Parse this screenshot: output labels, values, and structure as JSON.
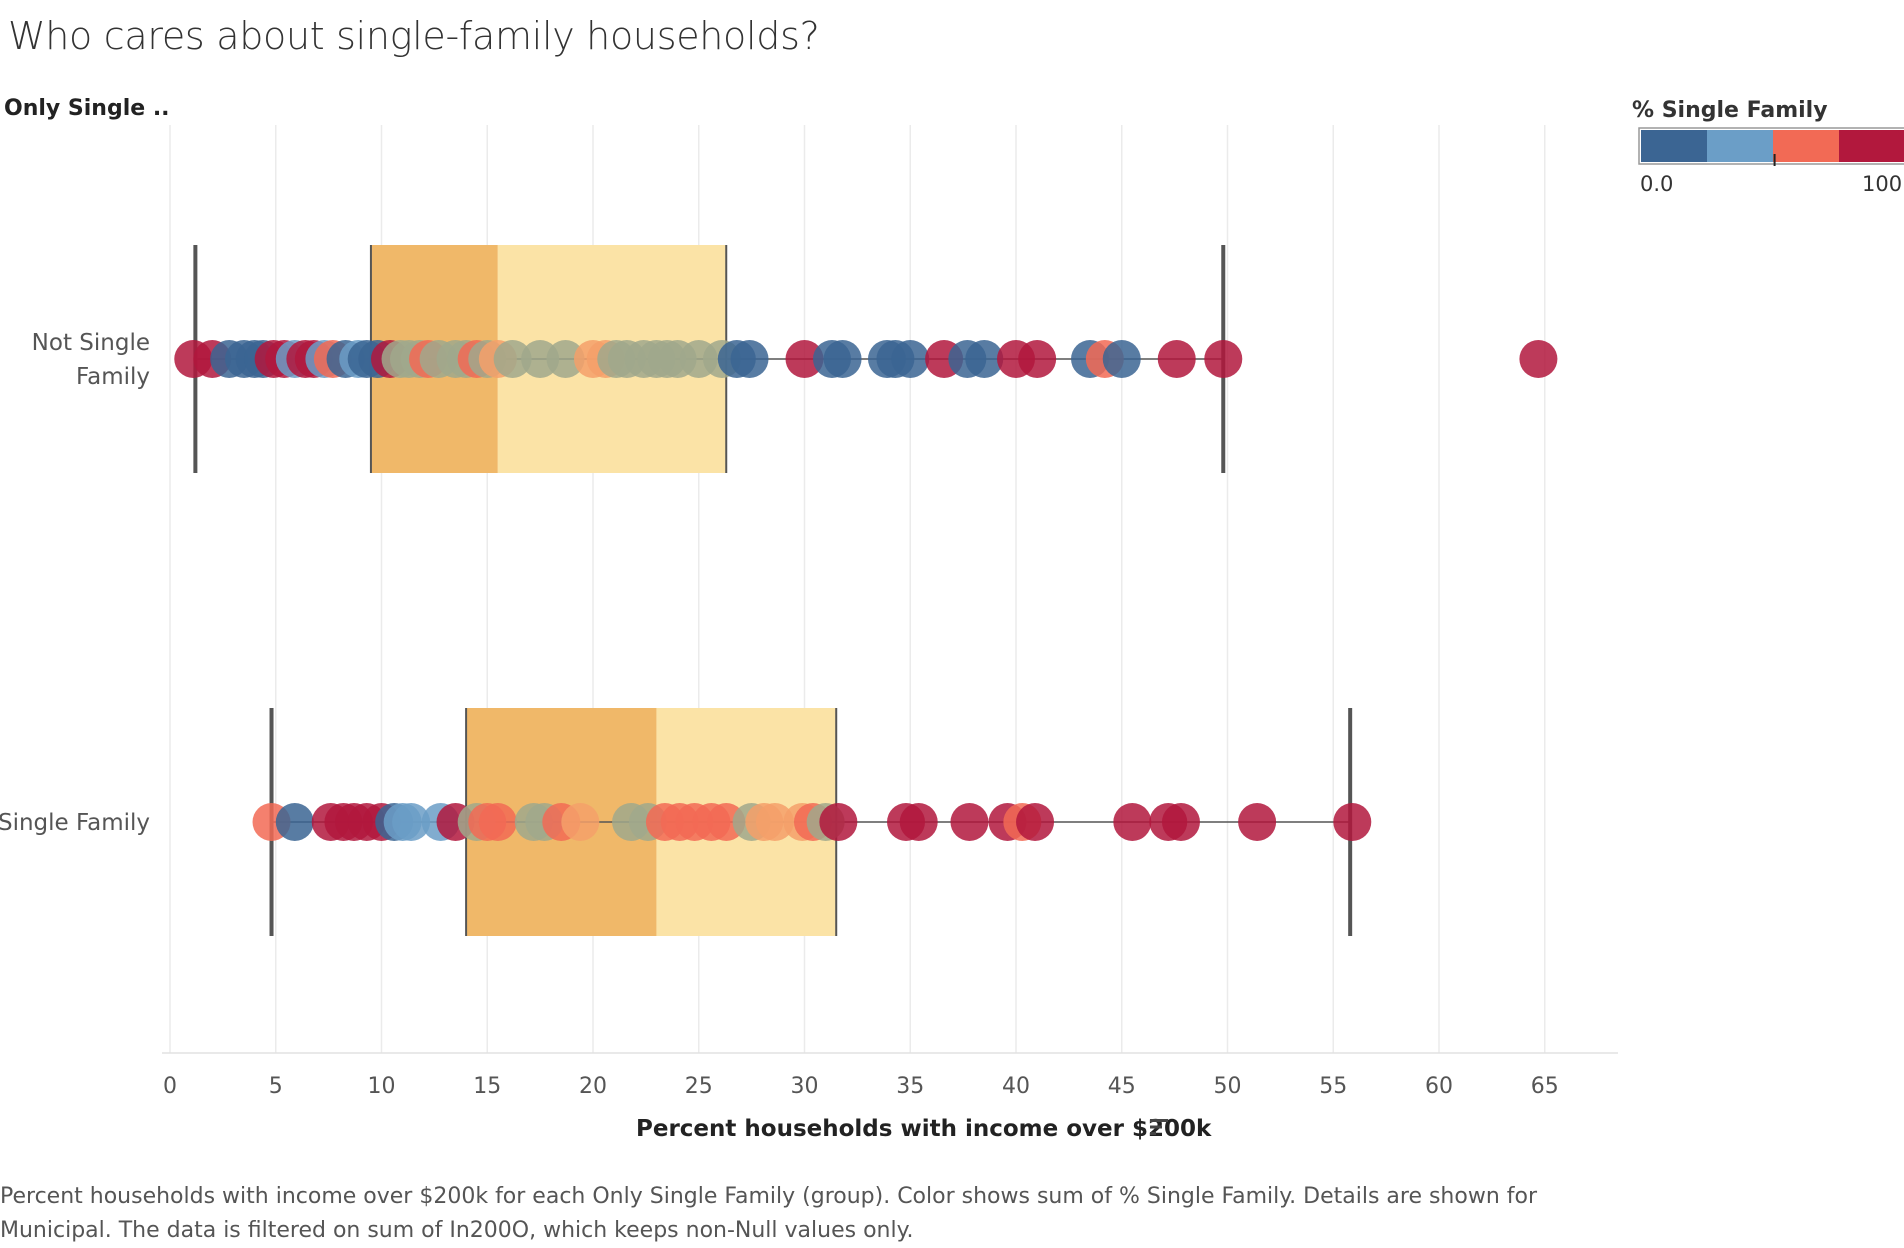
{
  "title": "Who cares about single-family households?",
  "row_header": "Only Single ..",
  "legend": {
    "title": "% Single Family",
    "min_label": "0.0",
    "max_label": "100.0",
    "colors": [
      "#3b6593",
      "#6b9ec7",
      "#f26a55",
      "#b2183d"
    ]
  },
  "caption": "Percent households with income over $200k for each Only Single Family (group).  Color shows sum of % Single Family.  Details are shown for Municipal. The data is filtered on sum of In200O, which keeps non-Null values only.",
  "sort_icon": "sort-descending-icon",
  "chart_data": {
    "type": "scatter",
    "subtype": "box-plot-with-jitter",
    "xlabel": "Percent households with income over $200k",
    "xlim": [
      0,
      69
    ],
    "xticks": [
      0,
      5,
      10,
      15,
      20,
      25,
      30,
      35,
      40,
      45,
      50,
      55,
      60,
      65
    ],
    "grid": true,
    "categories": [
      "Not Single\nFamily",
      "Single Family"
    ],
    "box_colors": {
      "lower": "#f0b869",
      "upper": "#fbe3a6"
    },
    "boxes": [
      {
        "category": "Not Single\nFamily",
        "whisker_low": 1.2,
        "q1": 9.5,
        "median": 15.5,
        "q3": 26.3,
        "whisker_high": 49.8
      },
      {
        "category": "Single Family",
        "whisker_low": 4.8,
        "q1": 14.0,
        "median": 23.0,
        "q3": 31.5,
        "whisker_high": 55.8
      }
    ],
    "series": [
      {
        "category": "Not Single\nFamily",
        "points": [
          {
            "x": 1.1,
            "c": "#b2183d"
          },
          {
            "x": 2.0,
            "c": "#b2183d"
          },
          {
            "x": 2.8,
            "c": "#3b6593"
          },
          {
            "x": 3.5,
            "c": "#3b6593"
          },
          {
            "x": 4.0,
            "c": "#3b6593"
          },
          {
            "x": 4.4,
            "c": "#3b6593"
          },
          {
            "x": 4.9,
            "c": "#b2183d"
          },
          {
            "x": 5.4,
            "c": "#b2183d"
          },
          {
            "x": 5.9,
            "c": "#6b9ec7"
          },
          {
            "x": 6.4,
            "c": "#b2183d"
          },
          {
            "x": 6.8,
            "c": "#b2183d"
          },
          {
            "x": 7.3,
            "c": "#6b9ec7"
          },
          {
            "x": 7.7,
            "c": "#f26a55"
          },
          {
            "x": 8.3,
            "c": "#3b6593"
          },
          {
            "x": 8.9,
            "c": "#6b9ec7"
          },
          {
            "x": 9.3,
            "c": "#3b6593"
          },
          {
            "x": 9.8,
            "c": "#3b6593"
          },
          {
            "x": 10.4,
            "c": "#b2183d"
          },
          {
            "x": 10.9,
            "c": "#a0a88c"
          },
          {
            "x": 11.3,
            "c": "#a0a88c"
          },
          {
            "x": 11.8,
            "c": "#a0a88c"
          },
          {
            "x": 12.2,
            "c": "#f26a55"
          },
          {
            "x": 12.7,
            "c": "#a0a88c"
          },
          {
            "x": 13.5,
            "c": "#a0a88c"
          },
          {
            "x": 14.0,
            "c": "#a0a88c"
          },
          {
            "x": 14.5,
            "c": "#f26a55"
          },
          {
            "x": 15.0,
            "c": "#a0a88c"
          },
          {
            "x": 15.5,
            "c": "#f5a06a"
          },
          {
            "x": 16.2,
            "c": "#a0a88c"
          },
          {
            "x": 17.5,
            "c": "#a0a88c"
          },
          {
            "x": 18.7,
            "c": "#a0a88c"
          },
          {
            "x": 20.0,
            "c": "#f5a06a"
          },
          {
            "x": 20.6,
            "c": "#f5a06a"
          },
          {
            "x": 21.1,
            "c": "#a0a88c"
          },
          {
            "x": 21.6,
            "c": "#a0a88c"
          },
          {
            "x": 22.4,
            "c": "#a0a88c"
          },
          {
            "x": 23.0,
            "c": "#a0a88c"
          },
          {
            "x": 23.5,
            "c": "#a0a88c"
          },
          {
            "x": 24.0,
            "c": "#a0a88c"
          },
          {
            "x": 25.0,
            "c": "#a0a88c"
          },
          {
            "x": 26.1,
            "c": "#a0a88c"
          },
          {
            "x": 26.8,
            "c": "#3b6593"
          },
          {
            "x": 27.4,
            "c": "#3b6593"
          },
          {
            "x": 30.0,
            "c": "#b2183d"
          },
          {
            "x": 31.3,
            "c": "#3b6593"
          },
          {
            "x": 31.8,
            "c": "#3b6593"
          },
          {
            "x": 33.9,
            "c": "#3b6593"
          },
          {
            "x": 34.3,
            "c": "#3b6593"
          },
          {
            "x": 35.0,
            "c": "#3b6593"
          },
          {
            "x": 36.6,
            "c": "#b2183d"
          },
          {
            "x": 37.7,
            "c": "#3b6593"
          },
          {
            "x": 38.5,
            "c": "#3b6593"
          },
          {
            "x": 40.0,
            "c": "#b2183d"
          },
          {
            "x": 41.0,
            "c": "#b2183d"
          },
          {
            "x": 43.5,
            "c": "#3b6593"
          },
          {
            "x": 44.2,
            "c": "#f26a55"
          },
          {
            "x": 45.0,
            "c": "#3b6593"
          },
          {
            "x": 47.6,
            "c": "#b2183d"
          },
          {
            "x": 49.8,
            "c": "#b2183d"
          },
          {
            "x": 64.7,
            "c": "#b2183d"
          }
        ]
      },
      {
        "category": "Single Family",
        "points": [
          {
            "x": 4.8,
            "c": "#f26a55"
          },
          {
            "x": 5.9,
            "c": "#3b6593"
          },
          {
            "x": 7.6,
            "c": "#b2183d"
          },
          {
            "x": 8.2,
            "c": "#b2183d"
          },
          {
            "x": 8.7,
            "c": "#b2183d"
          },
          {
            "x": 9.3,
            "c": "#b2183d"
          },
          {
            "x": 10.0,
            "c": "#b2183d"
          },
          {
            "x": 10.6,
            "c": "#3b6593"
          },
          {
            "x": 11.0,
            "c": "#6b9ec7"
          },
          {
            "x": 11.4,
            "c": "#6b9ec7"
          },
          {
            "x": 12.8,
            "c": "#6b9ec7"
          },
          {
            "x": 13.5,
            "c": "#b2183d"
          },
          {
            "x": 14.5,
            "c": "#a0a88c"
          },
          {
            "x": 15.0,
            "c": "#f26a55"
          },
          {
            "x": 15.5,
            "c": "#f26a55"
          },
          {
            "x": 17.2,
            "c": "#a0a88c"
          },
          {
            "x": 17.7,
            "c": "#a0a88c"
          },
          {
            "x": 18.5,
            "c": "#f26a55"
          },
          {
            "x": 19.4,
            "c": "#f5a06a"
          },
          {
            "x": 21.8,
            "c": "#a0a88c"
          },
          {
            "x": 22.6,
            "c": "#a0a88c"
          },
          {
            "x": 23.4,
            "c": "#f26a55"
          },
          {
            "x": 24.1,
            "c": "#f26a55"
          },
          {
            "x": 24.8,
            "c": "#f26a55"
          },
          {
            "x": 25.6,
            "c": "#f26a55"
          },
          {
            "x": 26.3,
            "c": "#f26a55"
          },
          {
            "x": 27.5,
            "c": "#a0a88c"
          },
          {
            "x": 28.1,
            "c": "#f5a06a"
          },
          {
            "x": 28.6,
            "c": "#f5a06a"
          },
          {
            "x": 29.9,
            "c": "#f5a06a"
          },
          {
            "x": 30.4,
            "c": "#f26a55"
          },
          {
            "x": 31.0,
            "c": "#a0a88c"
          },
          {
            "x": 31.6,
            "c": "#b2183d"
          },
          {
            "x": 34.8,
            "c": "#b2183d"
          },
          {
            "x": 35.4,
            "c": "#b2183d"
          },
          {
            "x": 37.8,
            "c": "#b2183d"
          },
          {
            "x": 39.6,
            "c": "#b2183d"
          },
          {
            "x": 40.3,
            "c": "#f26a55"
          },
          {
            "x": 40.9,
            "c": "#b2183d"
          },
          {
            "x": 45.5,
            "c": "#b2183d"
          },
          {
            "x": 47.2,
            "c": "#b2183d"
          },
          {
            "x": 47.8,
            "c": "#b2183d"
          },
          {
            "x": 51.4,
            "c": "#b2183d"
          },
          {
            "x": 55.9,
            "c": "#b2183d"
          }
        ]
      }
    ]
  }
}
